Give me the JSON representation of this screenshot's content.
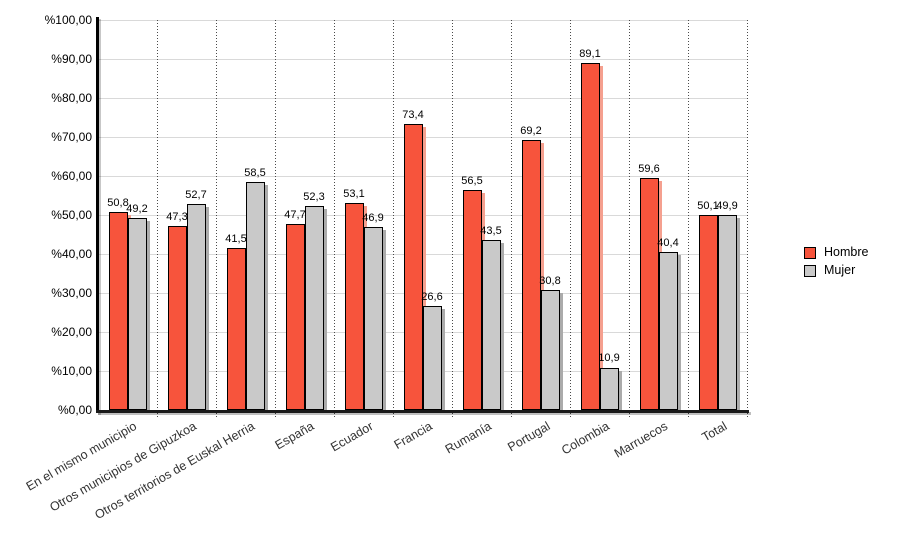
{
  "chart": {
    "background_color": "#FFFFFF",
    "axis_color": "#000000",
    "gridline_color": "#D9D9D9",
    "separator_color": "#4A4A4A",
    "tick_label_color": "#000000",
    "category_label_color": "#333333"
  },
  "chart_data": {
    "type": "bar",
    "title": "",
    "xlabel": "",
    "ylabel": "",
    "categories": [
      "En el mismo municipio",
      "Otros municipios de Gipuzkoa",
      "Otros territorios de Euskal Herria",
      "España",
      "Ecuador",
      "Francia",
      "Rumanía",
      "Portugal",
      "Colombia",
      "Marruecos",
      "Total"
    ],
    "series": [
      {
        "name": "Hombre",
        "color": "#F7543C",
        "shadow_color": "#F5A08F",
        "values": [
          50.8,
          47.3,
          41.5,
          47.7,
          53.1,
          73.4,
          56.5,
          69.2,
          89.1,
          59.6,
          50.1
        ],
        "value_labels": [
          "50,8",
          "47,3",
          "41,5",
          "47,7",
          "53,1",
          "73,4",
          "56,5",
          "69,2",
          "89,1",
          "59,6",
          "50,1"
        ]
      },
      {
        "name": "Mujer",
        "color": "#C9C9C9",
        "shadow_color": "#ABABAB",
        "values": [
          49.2,
          52.7,
          58.5,
          52.3,
          46.9,
          26.6,
          43.5,
          30.8,
          10.9,
          40.4,
          49.9
        ],
        "value_labels": [
          "49,2",
          "52,7",
          "58,5",
          "52,3",
          "46,9",
          "26,6",
          "43,5",
          "30,8",
          "10,9",
          "40,4",
          "49,9"
        ]
      }
    ],
    "y_axis": {
      "min": 0,
      "max": 100,
      "tick_labels": [
        "%0,00",
        "%10,00",
        "%20,00",
        "%30,00",
        "%40,00",
        "%50,00",
        "%60,00",
        "%70,00",
        "%80,00",
        "%90,00",
        "%100,00"
      ]
    },
    "grid": true,
    "legend_position": "right"
  }
}
